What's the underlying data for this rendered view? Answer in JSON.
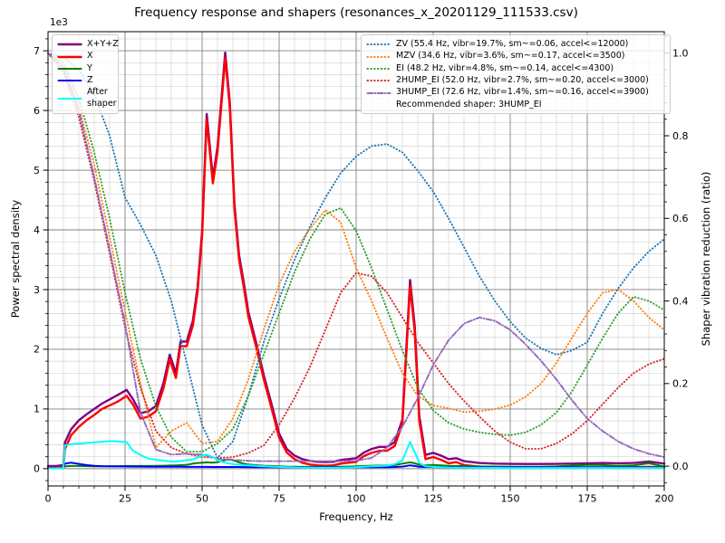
{
  "window": {
    "background": "#ffffff"
  },
  "chart_data": {
    "type": "line",
    "title": "Frequency response and shapers (resonances_x_20201129_111533.csv)",
    "xlabel": "Frequency, Hz",
    "ylabel_left": "Power spectral density",
    "ylabel_left_offset": "1e3",
    "ylabel_right": "Shaper vibration reduction (ratio)",
    "legend_note": "Recommended shaper: 3HUMP_EI",
    "recommended_shaper": "3HUMP_EI",
    "grid": {
      "major_color": "#808080",
      "minor_color": "#d3d3d3",
      "on": true
    },
    "axes": {
      "xlim": [
        0,
        200
      ],
      "ylim_left": [
        -290,
        7320
      ],
      "ylim_right": [
        -0.048,
        1.052
      ],
      "x_major_ticks": [
        0,
        25,
        50,
        75,
        100,
        125,
        150,
        175,
        200
      ],
      "x_minor_step": 5,
      "yl_major_ticks": [
        0,
        1000,
        2000,
        3000,
        4000,
        5000,
        6000,
        7000
      ],
      "yl_major_labels": [
        "0",
        "1",
        "2",
        "3",
        "4",
        "5",
        "6",
        "7"
      ],
      "yl_minor_step": 200,
      "yr_major_ticks": [
        0,
        0.2,
        0.4,
        0.6,
        0.8,
        1.0
      ],
      "yr_major_labels": [
        "0.0",
        "0.2",
        "0.4",
        "0.6",
        "0.8",
        "1.0"
      ],
      "yr_minor_step": 0.04
    },
    "x_psd": [
      0,
      2.5,
      5,
      5.5,
      7.5,
      10,
      12.5,
      15,
      17.5,
      20,
      22.5,
      25.5,
      27.5,
      30,
      32.5,
      35,
      37.5,
      39.5,
      41.5,
      43,
      45,
      47,
      48.5,
      50,
      51.5,
      53.5,
      55,
      57.5,
      59,
      60.5,
      62,
      63.5,
      65,
      67.5,
      70,
      72.5,
      75,
      77.5,
      80,
      82.5,
      85,
      87.5,
      90,
      92.5,
      95,
      97.5,
      100,
      102.5,
      105,
      107.5,
      110,
      112.5,
      115,
      117.5,
      119,
      120.5,
      122.5,
      125,
      127.5,
      130,
      132.5,
      135,
      140,
      145,
      150,
      155,
      160,
      165,
      170,
      175,
      180,
      185,
      190,
      195,
      200
    ],
    "psd_series": [
      {
        "name": "X+Y+Z",
        "color": "#800080",
        "width": 2.4,
        "style": "solid",
        "values": [
          45,
          45,
          60,
          440,
          660,
          810,
          910,
          1000,
          1090,
          1160,
          1230,
          1320,
          1170,
          930,
          960,
          1050,
          1440,
          1910,
          1600,
          2130,
          2130,
          2480,
          3030,
          3970,
          5940,
          4870,
          5390,
          6970,
          6130,
          4430,
          3580,
          3130,
          2630,
          2120,
          1570,
          1090,
          590,
          330,
          220,
          160,
          130,
          115,
          110,
          115,
          145,
          160,
          175,
          270,
          330,
          365,
          365,
          445,
          820,
          3160,
          2400,
          880,
          230,
          265,
          220,
          160,
          175,
          125,
          95,
          85,
          80,
          78,
          78,
          80,
          85,
          90,
          95,
          90,
          95,
          120,
          85
        ]
      },
      {
        "name": "X",
        "color": "#ff0000",
        "width": 2.4,
        "style": "solid",
        "values": [
          15,
          15,
          20,
          330,
          560,
          700,
          810,
          900,
          1000,
          1060,
          1120,
          1220,
          1080,
          840,
          870,
          960,
          1350,
          1830,
          1520,
          2050,
          2050,
          2400,
          2950,
          3900,
          5850,
          4780,
          5300,
          6880,
          6050,
          4350,
          3500,
          3050,
          2550,
          2050,
          1500,
          1020,
          520,
          270,
          160,
          100,
          70,
          55,
          50,
          55,
          85,
          100,
          115,
          210,
          265,
          300,
          300,
          380,
          750,
          3060,
          2300,
          800,
          160,
          195,
          150,
          90,
          110,
          60,
          35,
          25,
          25,
          22,
          22,
          22,
          22,
          22,
          22,
          22,
          25,
          28,
          22
        ]
      },
      {
        "name": "Y",
        "color": "#008000",
        "width": 2.0,
        "style": "solid",
        "values": [
          10,
          10,
          15,
          40,
          45,
          45,
          42,
          40,
          40,
          40,
          42,
          45,
          45,
          45,
          45,
          48,
          50,
          52,
          55,
          58,
          65,
          85,
          95,
          100,
          105,
          100,
          110,
          145,
          155,
          135,
          105,
          85,
          70,
          58,
          50,
          45,
          40,
          35,
          32,
          30,
          30,
          30,
          30,
          30,
          32,
          35,
          40,
          45,
          50,
          52,
          52,
          60,
          85,
          105,
          90,
          65,
          55,
          62,
          55,
          48,
          45,
          42,
          38,
          35,
          33,
          32,
          33,
          38,
          50,
          65,
          60,
          48,
          55,
          90,
          35
        ]
      },
      {
        "name": "Z",
        "color": "#0000ff",
        "width": 2.0,
        "style": "solid",
        "values": [
          10,
          10,
          12,
          85,
          100,
          80,
          60,
          48,
          42,
          40,
          38,
          36,
          35,
          34,
          33,
          32,
          32,
          32,
          31,
          31,
          30,
          30,
          30,
          30,
          30,
          29,
          29,
          29,
          28,
          28,
          28,
          27,
          27,
          26,
          26,
          25,
          25,
          24,
          24,
          23,
          23,
          23,
          22,
          22,
          22,
          23,
          24,
          25,
          26,
          26,
          26,
          28,
          35,
          55,
          45,
          32,
          28,
          28,
          27,
          26,
          25,
          25,
          24,
          23,
          23,
          22,
          22,
          22,
          22,
          22,
          22,
          21,
          21,
          21,
          20
        ]
      },
      {
        "name": "After shaper",
        "color": "#00ffff",
        "width": 2.0,
        "style": "solid",
        "values": [
          5,
          5,
          8,
          390,
          410,
          420,
          432,
          440,
          450,
          462,
          458,
          445,
          305,
          230,
          170,
          150,
          135,
          122,
          120,
          128,
          140,
          155,
          185,
          220,
          235,
          195,
          140,
          100,
          85,
          72,
          66,
          60,
          55,
          46,
          40,
          35,
          30,
          25,
          21,
          18,
          16,
          15,
          15,
          15,
          17,
          20,
          25,
          32,
          40,
          45,
          50,
          75,
          140,
          450,
          280,
          95,
          40,
          30,
          25,
          20,
          18,
          16,
          14,
          13,
          12,
          12,
          12,
          12,
          12,
          12,
          12,
          12,
          12,
          12,
          12
        ]
      }
    ],
    "x_shaper": [
      0,
      5,
      10,
      15,
      20,
      25,
      30,
      35,
      40,
      45,
      50,
      55,
      60,
      65,
      70,
      75,
      80,
      85,
      90,
      95,
      100,
      105,
      110,
      115,
      120,
      125,
      130,
      135,
      140,
      145,
      150,
      155,
      160,
      165,
      170,
      175,
      180,
      185,
      190,
      195,
      200
    ],
    "shaper_series": [
      {
        "name": "ZV",
        "label": "ZV (55.4 Hz, vibr=19.7%, sm~=0.06, accel<=12000)",
        "color": "#1f77b4",
        "style": "dotted",
        "values": [
          1.0,
          0.99,
          0.96,
          0.9,
          0.8,
          0.65,
          0.585,
          0.51,
          0.4,
          0.25,
          0.1,
          0.02,
          0.06,
          0.17,
          0.3,
          0.405,
          0.5,
          0.58,
          0.65,
          0.71,
          0.75,
          0.775,
          0.78,
          0.76,
          0.715,
          0.665,
          0.6,
          0.53,
          0.46,
          0.4,
          0.35,
          0.31,
          0.285,
          0.27,
          0.28,
          0.3,
          0.37,
          0.43,
          0.48,
          0.52,
          0.55
        ]
      },
      {
        "name": "MZV",
        "label": "MZV (34.6 Hz, vibr=3.6%, sm~=0.17, accel<=3500)",
        "color": "#ff7f0e",
        "style": "dotted",
        "values": [
          1.0,
          0.965,
          0.87,
          0.73,
          0.555,
          0.375,
          0.2,
          0.045,
          0.085,
          0.105,
          0.055,
          0.06,
          0.115,
          0.21,
          0.33,
          0.44,
          0.52,
          0.575,
          0.62,
          0.59,
          0.48,
          0.4,
          0.31,
          0.225,
          0.17,
          0.147,
          0.14,
          0.131,
          0.133,
          0.138,
          0.148,
          0.168,
          0.2,
          0.25,
          0.31,
          0.37,
          0.42,
          0.428,
          0.4,
          0.36,
          0.33
        ]
      },
      {
        "name": "EI",
        "label": "EI (48.2 Hz, vibr=4.8%, sm~=0.14, accel<=4300)",
        "color": "#2ca02c",
        "style": "dotted",
        "values": [
          1.0,
          0.975,
          0.89,
          0.76,
          0.6,
          0.42,
          0.26,
          0.145,
          0.07,
          0.035,
          0.035,
          0.055,
          0.09,
          0.17,
          0.27,
          0.37,
          0.47,
          0.55,
          0.61,
          0.625,
          0.57,
          0.48,
          0.38,
          0.28,
          0.19,
          0.135,
          0.105,
          0.09,
          0.082,
          0.077,
          0.075,
          0.082,
          0.1,
          0.13,
          0.18,
          0.245,
          0.31,
          0.37,
          0.41,
          0.4,
          0.378
        ]
      },
      {
        "name": "2HUMP_EI",
        "label": "2HUMP_EI (52.0 Hz, vibr=2.7%, sm~=0.20, accel<=3000)",
        "color": "#d62728",
        "style": "dotted",
        "values": [
          1.0,
          0.955,
          0.845,
          0.69,
          0.515,
          0.335,
          0.19,
          0.085,
          0.045,
          0.03,
          0.022,
          0.02,
          0.022,
          0.032,
          0.05,
          0.1,
          0.165,
          0.24,
          0.33,
          0.42,
          0.468,
          0.46,
          0.42,
          0.36,
          0.3,
          0.25,
          0.2,
          0.158,
          0.12,
          0.085,
          0.058,
          0.042,
          0.042,
          0.055,
          0.078,
          0.11,
          0.15,
          0.19,
          0.225,
          0.247,
          0.26
        ]
      },
      {
        "name": "3HUMP_EI",
        "label": "3HUMP_EI (72.6 Hz, vibr=1.4%, sm~=0.16, accel<=3900)",
        "color": "#9467bd",
        "style": "dashdot",
        "values": [
          1.0,
          0.965,
          0.86,
          0.7,
          0.525,
          0.345,
          0.13,
          0.04,
          0.028,
          0.03,
          0.028,
          0.018,
          0.015,
          0.013,
          0.012,
          0.012,
          0.012,
          0.012,
          0.012,
          0.012,
          0.013,
          0.02,
          0.045,
          0.095,
          0.165,
          0.245,
          0.305,
          0.345,
          0.36,
          0.352,
          0.33,
          0.295,
          0.255,
          0.21,
          0.16,
          0.115,
          0.085,
          0.06,
          0.042,
          0.03,
          0.022
        ]
      }
    ]
  }
}
